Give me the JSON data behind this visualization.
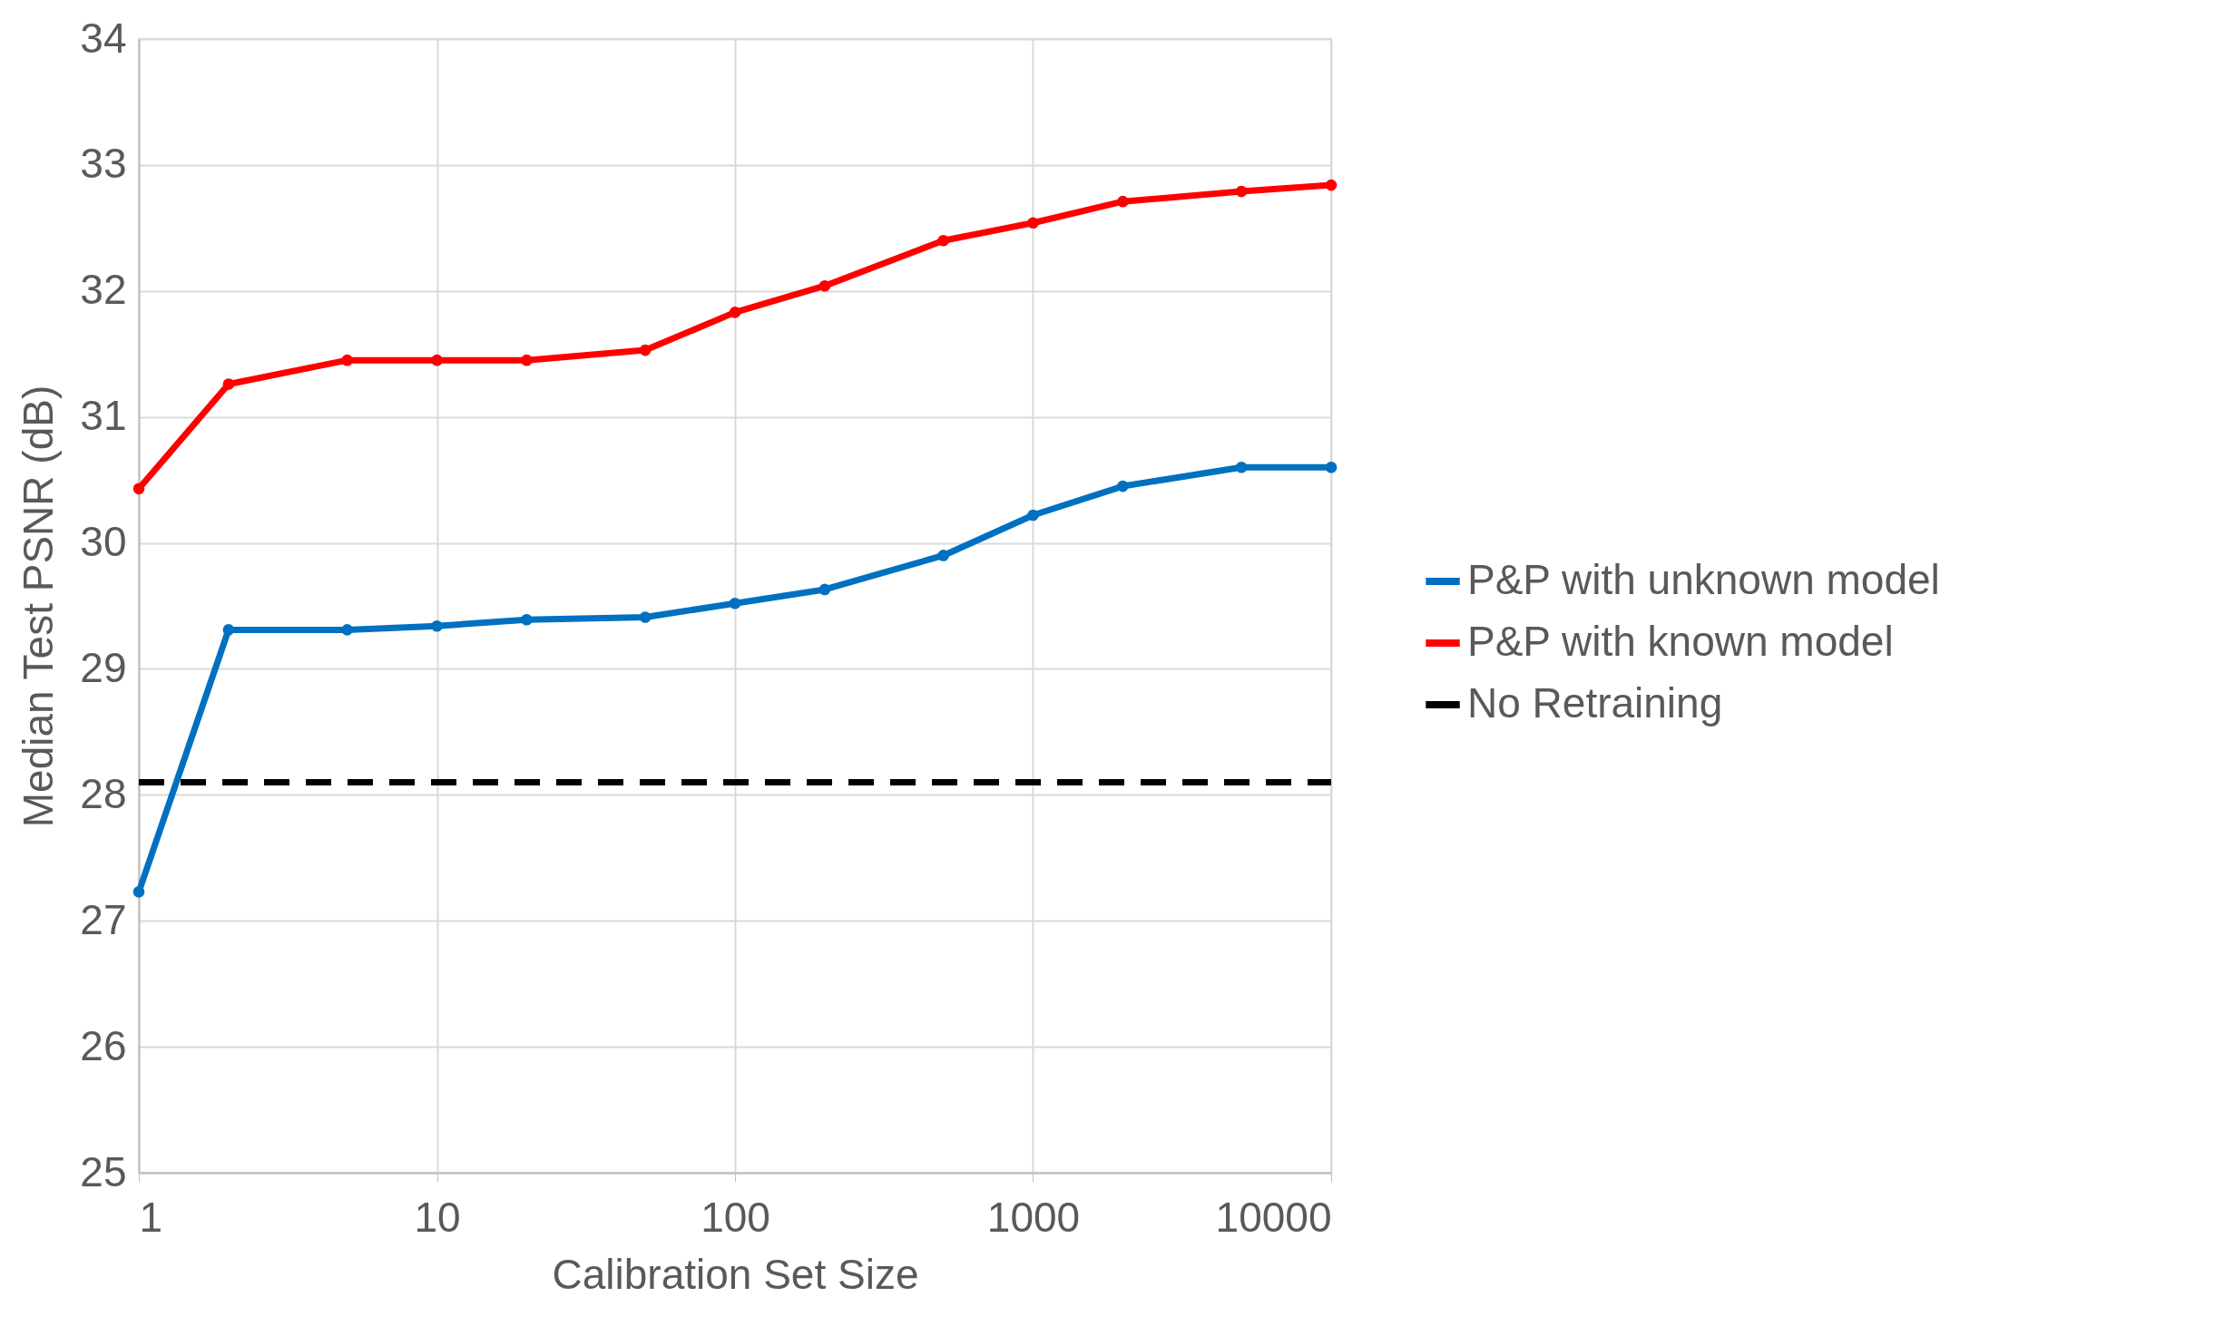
{
  "chart_data": {
    "type": "line",
    "xlabel": "Calibration Set Size",
    "ylabel": "Median Test PSNR (dB)",
    "log": "x",
    "grid": true,
    "legend": "right",
    "marker": "circle",
    "xlim": [
      1,
      10000
    ],
    "xticks": [
      1,
      10,
      100,
      1000,
      10000
    ],
    "ylim": [
      25,
      34
    ],
    "yticks": [
      25,
      26,
      27,
      28,
      29,
      30,
      31,
      32,
      33,
      34
    ],
    "x": [
      1,
      2,
      5,
      10,
      20,
      50,
      100,
      200,
      500,
      1000,
      2000,
      5000,
      10000
    ],
    "series": [
      {
        "name": "P&P with unknown model",
        "color": "#0070c0",
        "line_style": "solid",
        "values": [
          27.23,
          29.31,
          29.31,
          29.34,
          29.39,
          29.41,
          29.52,
          29.63,
          29.9,
          30.22,
          30.45,
          30.6,
          30.6
        ]
      },
      {
        "name": "P&P with known model",
        "color": "#ff0000",
        "line_style": "solid",
        "values": [
          30.43,
          31.26,
          31.45,
          31.45,
          31.45,
          31.53,
          31.83,
          32.04,
          32.4,
          32.54,
          32.71,
          32.79,
          32.84
        ]
      },
      {
        "name": "No Retraining",
        "color": "#000000",
        "line_style": "dashed",
        "marker": "none",
        "x": [
          1,
          10000
        ],
        "values": [
          28.1,
          28.1
        ]
      }
    ]
  }
}
